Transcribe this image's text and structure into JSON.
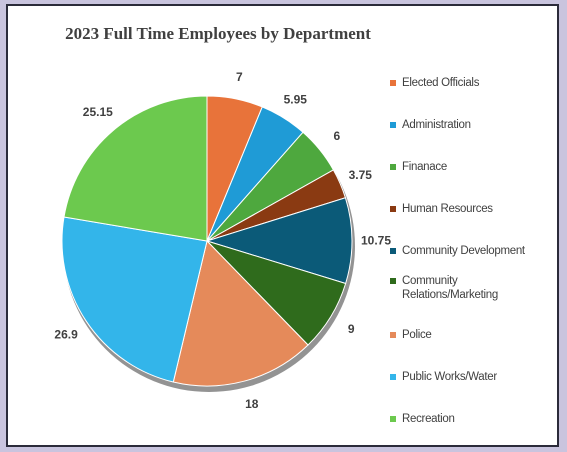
{
  "chart_data": {
    "type": "pie",
    "title": "2023 Full Time Employees by Department",
    "legend_position": "right",
    "categories": [
      "Elected Officials",
      "Administration",
      "Finanace",
      "Human Resources",
      "Community Development",
      "Community Relations/Marketing",
      "Police",
      "Public Works/Water",
      "Recreation"
    ],
    "legend_lines": [
      [
        "Elected Officials"
      ],
      [
        "Administration"
      ],
      [
        "Finanace"
      ],
      [
        "Human Resources"
      ],
      [
        "Community Development"
      ],
      [
        "Community",
        "Relations/Marketing"
      ],
      [
        "Police"
      ],
      [
        "Public Works/Water"
      ],
      [
        "Recreation"
      ]
    ],
    "values": [
      7,
      5.95,
      6,
      3.75,
      10.75,
      9,
      18,
      26.9,
      25.15
    ],
    "value_labels": [
      "7",
      "5.95",
      "6",
      "3.75",
      "10.75",
      "9",
      "18",
      "26.9",
      "25.15"
    ],
    "colors": [
      "#e8733a",
      "#1f9bd6",
      "#4ea83e",
      "#8a3a12",
      "#0b5a78",
      "#2f6b1c",
      "#e58a5a",
      "#33b5ea",
      "#6cc94e"
    ]
  }
}
